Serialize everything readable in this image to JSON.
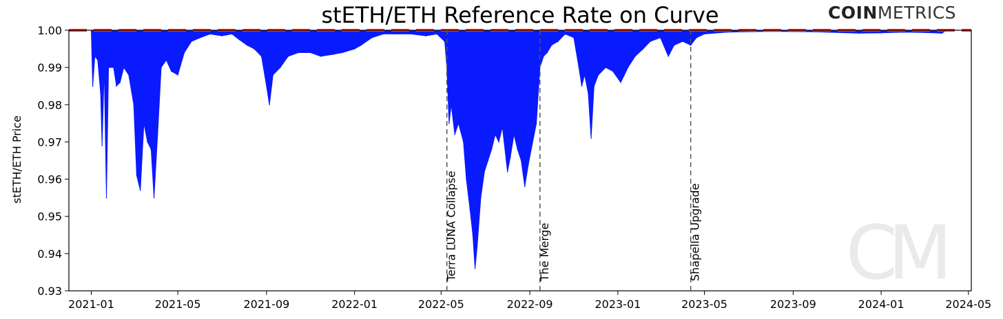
{
  "brand": {
    "bold": "COIN",
    "light": "METRICS",
    "watermark": "CM"
  },
  "chart_data": {
    "type": "area",
    "title": "stETH/ETH Reference Rate on Curve",
    "xlabel": "",
    "ylabel": "stETH/ETH Price",
    "xlim": [
      "2020-12-01",
      "2024-05-05"
    ],
    "ylim": [
      0.93,
      1.0
    ],
    "x_ticks": [
      "2021-01",
      "2021-05",
      "2021-09",
      "2022-01",
      "2022-05",
      "2022-09",
      "2023-01",
      "2023-05",
      "2023-09",
      "2024-01",
      "2024-05"
    ],
    "y_ticks": [
      "0.93",
      "0.94",
      "0.95",
      "0.96",
      "0.97",
      "0.98",
      "0.99",
      "1.00"
    ],
    "grid": false,
    "colors": {
      "series": "#0a1aff",
      "reference": "#ff2a2a",
      "events": "#555555"
    },
    "reference_line": {
      "value": 1.0,
      "style": "dashed"
    },
    "series": [
      {
        "points": [
          [
            "2021-01-01",
            1.0
          ],
          [
            "2021-01-03",
            0.985
          ],
          [
            "2021-01-06",
            0.993
          ],
          [
            "2021-01-10",
            0.992
          ],
          [
            "2021-01-14",
            0.983
          ],
          [
            "2021-01-16",
            0.969
          ],
          [
            "2021-01-19",
            0.99
          ],
          [
            "2021-01-22",
            0.955
          ],
          [
            "2021-01-25",
            0.99
          ],
          [
            "2021-02-01",
            0.99
          ],
          [
            "2021-02-05",
            0.985
          ],
          [
            "2021-02-10",
            0.986
          ],
          [
            "2021-02-15",
            0.99
          ],
          [
            "2021-02-22",
            0.988
          ],
          [
            "2021-03-01",
            0.98
          ],
          [
            "2021-03-05",
            0.961
          ],
          [
            "2021-03-10",
            0.957
          ],
          [
            "2021-03-15",
            0.975
          ],
          [
            "2021-03-20",
            0.97
          ],
          [
            "2021-03-25",
            0.968
          ],
          [
            "2021-03-29",
            0.955
          ],
          [
            "2021-04-03",
            0.972
          ],
          [
            "2021-04-08",
            0.99
          ],
          [
            "2021-04-15",
            0.992
          ],
          [
            "2021-04-22",
            0.989
          ],
          [
            "2021-05-01",
            0.988
          ],
          [
            "2021-05-10",
            0.994
          ],
          [
            "2021-05-20",
            0.997
          ],
          [
            "2021-06-01",
            0.998
          ],
          [
            "2021-06-15",
            0.999
          ],
          [
            "2021-07-01",
            0.9985
          ],
          [
            "2021-07-15",
            0.999
          ],
          [
            "2021-07-25",
            0.9975
          ],
          [
            "2021-08-05",
            0.996
          ],
          [
            "2021-08-15",
            0.995
          ],
          [
            "2021-08-25",
            0.993
          ],
          [
            "2021-09-01",
            0.985
          ],
          [
            "2021-09-05",
            0.98
          ],
          [
            "2021-09-10",
            0.988
          ],
          [
            "2021-09-20",
            0.99
          ],
          [
            "2021-10-01",
            0.993
          ],
          [
            "2021-10-15",
            0.994
          ],
          [
            "2021-11-01",
            0.994
          ],
          [
            "2021-11-15",
            0.993
          ],
          [
            "2021-12-01",
            0.9935
          ],
          [
            "2021-12-15",
            0.994
          ],
          [
            "2022-01-01",
            0.995
          ],
          [
            "2022-01-10",
            0.996
          ],
          [
            "2022-01-25",
            0.998
          ],
          [
            "2022-02-10",
            0.999
          ],
          [
            "2022-03-01",
            0.999
          ],
          [
            "2022-03-20",
            0.999
          ],
          [
            "2022-04-10",
            0.9985
          ],
          [
            "2022-04-25",
            0.999
          ],
          [
            "2022-05-06",
            0.997
          ],
          [
            "2022-05-09",
            0.99
          ],
          [
            "2022-05-12",
            0.975
          ],
          [
            "2022-05-15",
            0.98
          ],
          [
            "2022-05-20",
            0.972
          ],
          [
            "2022-05-25",
            0.975
          ],
          [
            "2022-06-01",
            0.97
          ],
          [
            "2022-06-05",
            0.96
          ],
          [
            "2022-06-10",
            0.952
          ],
          [
            "2022-06-14",
            0.945
          ],
          [
            "2022-06-17",
            0.936
          ],
          [
            "2022-06-20",
            0.942
          ],
          [
            "2022-06-25",
            0.955
          ],
          [
            "2022-06-30",
            0.962
          ],
          [
            "2022-07-05",
            0.965
          ],
          [
            "2022-07-10",
            0.968
          ],
          [
            "2022-07-15",
            0.972
          ],
          [
            "2022-07-20",
            0.97
          ],
          [
            "2022-07-25",
            0.974
          ],
          [
            "2022-08-01",
            0.962
          ],
          [
            "2022-08-05",
            0.966
          ],
          [
            "2022-08-10",
            0.972
          ],
          [
            "2022-08-15",
            0.968
          ],
          [
            "2022-08-20",
            0.965
          ],
          [
            "2022-08-25",
            0.958
          ],
          [
            "2022-08-30",
            0.964
          ],
          [
            "2022-09-05",
            0.97
          ],
          [
            "2022-09-10",
            0.975
          ],
          [
            "2022-09-15",
            0.99
          ],
          [
            "2022-09-20",
            0.993
          ],
          [
            "2022-09-25",
            0.994
          ],
          [
            "2022-10-01",
            0.996
          ],
          [
            "2022-10-10",
            0.997
          ],
          [
            "2022-10-20",
            0.999
          ],
          [
            "2022-11-01",
            0.998
          ],
          [
            "2022-11-08",
            0.99
          ],
          [
            "2022-11-12",
            0.985
          ],
          [
            "2022-11-16",
            0.988
          ],
          [
            "2022-11-21",
            0.983
          ],
          [
            "2022-11-25",
            0.971
          ],
          [
            "2022-11-29",
            0.985
          ],
          [
            "2022-12-05",
            0.988
          ],
          [
            "2022-12-15",
            0.99
          ],
          [
            "2022-12-25",
            0.989
          ],
          [
            "2023-01-05",
            0.986
          ],
          [
            "2023-01-15",
            0.99
          ],
          [
            "2023-01-25",
            0.993
          ],
          [
            "2023-02-05",
            0.995
          ],
          [
            "2023-02-15",
            0.997
          ],
          [
            "2023-03-01",
            0.998
          ],
          [
            "2023-03-12",
            0.993
          ],
          [
            "2023-03-20",
            0.996
          ],
          [
            "2023-04-01",
            0.997
          ],
          [
            "2023-04-12",
            0.996
          ],
          [
            "2023-04-20",
            0.998
          ],
          [
            "2023-05-01",
            0.999
          ],
          [
            "2023-06-01",
            0.9995
          ],
          [
            "2023-08-01",
            0.9997
          ],
          [
            "2023-10-01",
            0.9996
          ],
          [
            "2023-12-01",
            0.9992
          ],
          [
            "2024-01-01",
            0.9993
          ],
          [
            "2024-02-01",
            0.9995
          ],
          [
            "2024-03-01",
            0.9994
          ],
          [
            "2024-03-25",
            0.9992
          ],
          [
            "2024-04-01",
            1.0
          ]
        ]
      }
    ],
    "events": [
      {
        "date": "2022-05-09",
        "label": "Terra LUNA Collapse"
      },
      {
        "date": "2022-09-15",
        "label": "The Merge"
      },
      {
        "date": "2023-04-12",
        "label": "Shapella Upgrade"
      }
    ]
  }
}
